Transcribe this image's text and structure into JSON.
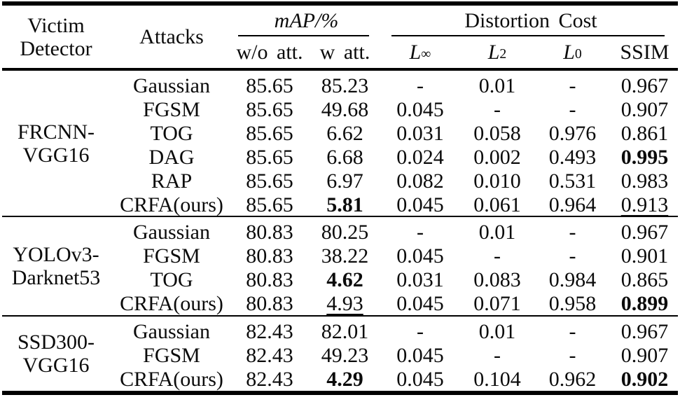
{
  "header": {
    "victim_line1": "Victim",
    "victim_line2": "Detector",
    "attacks": "Attacks",
    "map_group": "mAP/%",
    "map_sub": [
      "w/o att.",
      "w att."
    ],
    "distortion_group": "Distortion Cost",
    "distortion_sub": [
      {
        "base": "L",
        "sub": "∞"
      },
      {
        "base": "L",
        "sub": "2"
      },
      {
        "base": "L",
        "sub": "0"
      },
      {
        "base": "SSIM"
      }
    ]
  },
  "groups": [
    {
      "detector_line1": "FRCNN-",
      "detector_line2": "VGG16",
      "rows": [
        {
          "attack": "Gaussian",
          "cells": [
            "85.65",
            "85.23",
            "-",
            "0.01",
            "-",
            "0.967"
          ]
        },
        {
          "attack": "FGSM",
          "cells": [
            "85.65",
            "49.68",
            "0.045",
            "-",
            "-",
            "0.907"
          ]
        },
        {
          "attack": "TOG",
          "cells": [
            "85.65",
            "6.62",
            "0.031",
            "0.058",
            "0.976",
            "0.861"
          ]
        },
        {
          "attack": "DAG",
          "cells": [
            "85.65",
            "6.68",
            "0.024",
            "0.002",
            "0.493",
            "0.995"
          ]
        },
        {
          "attack": "RAP",
          "cells": [
            "85.65",
            "6.97",
            "0.082",
            "0.010",
            "0.531",
            "0.983"
          ]
        },
        {
          "attack": "CRFA(ours)",
          "cells": [
            "85.65",
            "5.81",
            "0.045",
            "0.061",
            "0.964",
            "0.913"
          ]
        }
      ]
    },
    {
      "detector_line1": "YOLOv3-",
      "detector_line2": "Darknet53",
      "rows": [
        {
          "attack": "Gaussian",
          "cells": [
            "80.83",
            "80.25",
            "-",
            "0.01",
            "-",
            "0.967"
          ]
        },
        {
          "attack": "FGSM",
          "cells": [
            "80.83",
            "38.22",
            "0.045",
            "-",
            "-",
            "0.901"
          ]
        },
        {
          "attack": "TOG",
          "cells": [
            "80.83",
            "4.62",
            "0.031",
            "0.083",
            "0.984",
            "0.865"
          ]
        },
        {
          "attack": "CRFA(ours)",
          "cells": [
            "80.83",
            "4.93",
            "0.045",
            "0.071",
            "0.958",
            "0.899"
          ]
        }
      ]
    },
    {
      "detector_line1": "SSD300-",
      "detector_line2": "VGG16",
      "rows": [
        {
          "attack": "Gaussian",
          "cells": [
            "82.43",
            "82.01",
            "-",
            "0.01",
            "-",
            "0.967"
          ]
        },
        {
          "attack": "FGSM",
          "cells": [
            "82.43",
            "49.23",
            "0.045",
            "-",
            "-",
            "0.907"
          ]
        },
        {
          "attack": "CRFA(ours)",
          "cells": [
            "82.43",
            "4.29",
            "0.045",
            "0.104",
            "0.962",
            "0.902"
          ]
        }
      ]
    }
  ]
}
